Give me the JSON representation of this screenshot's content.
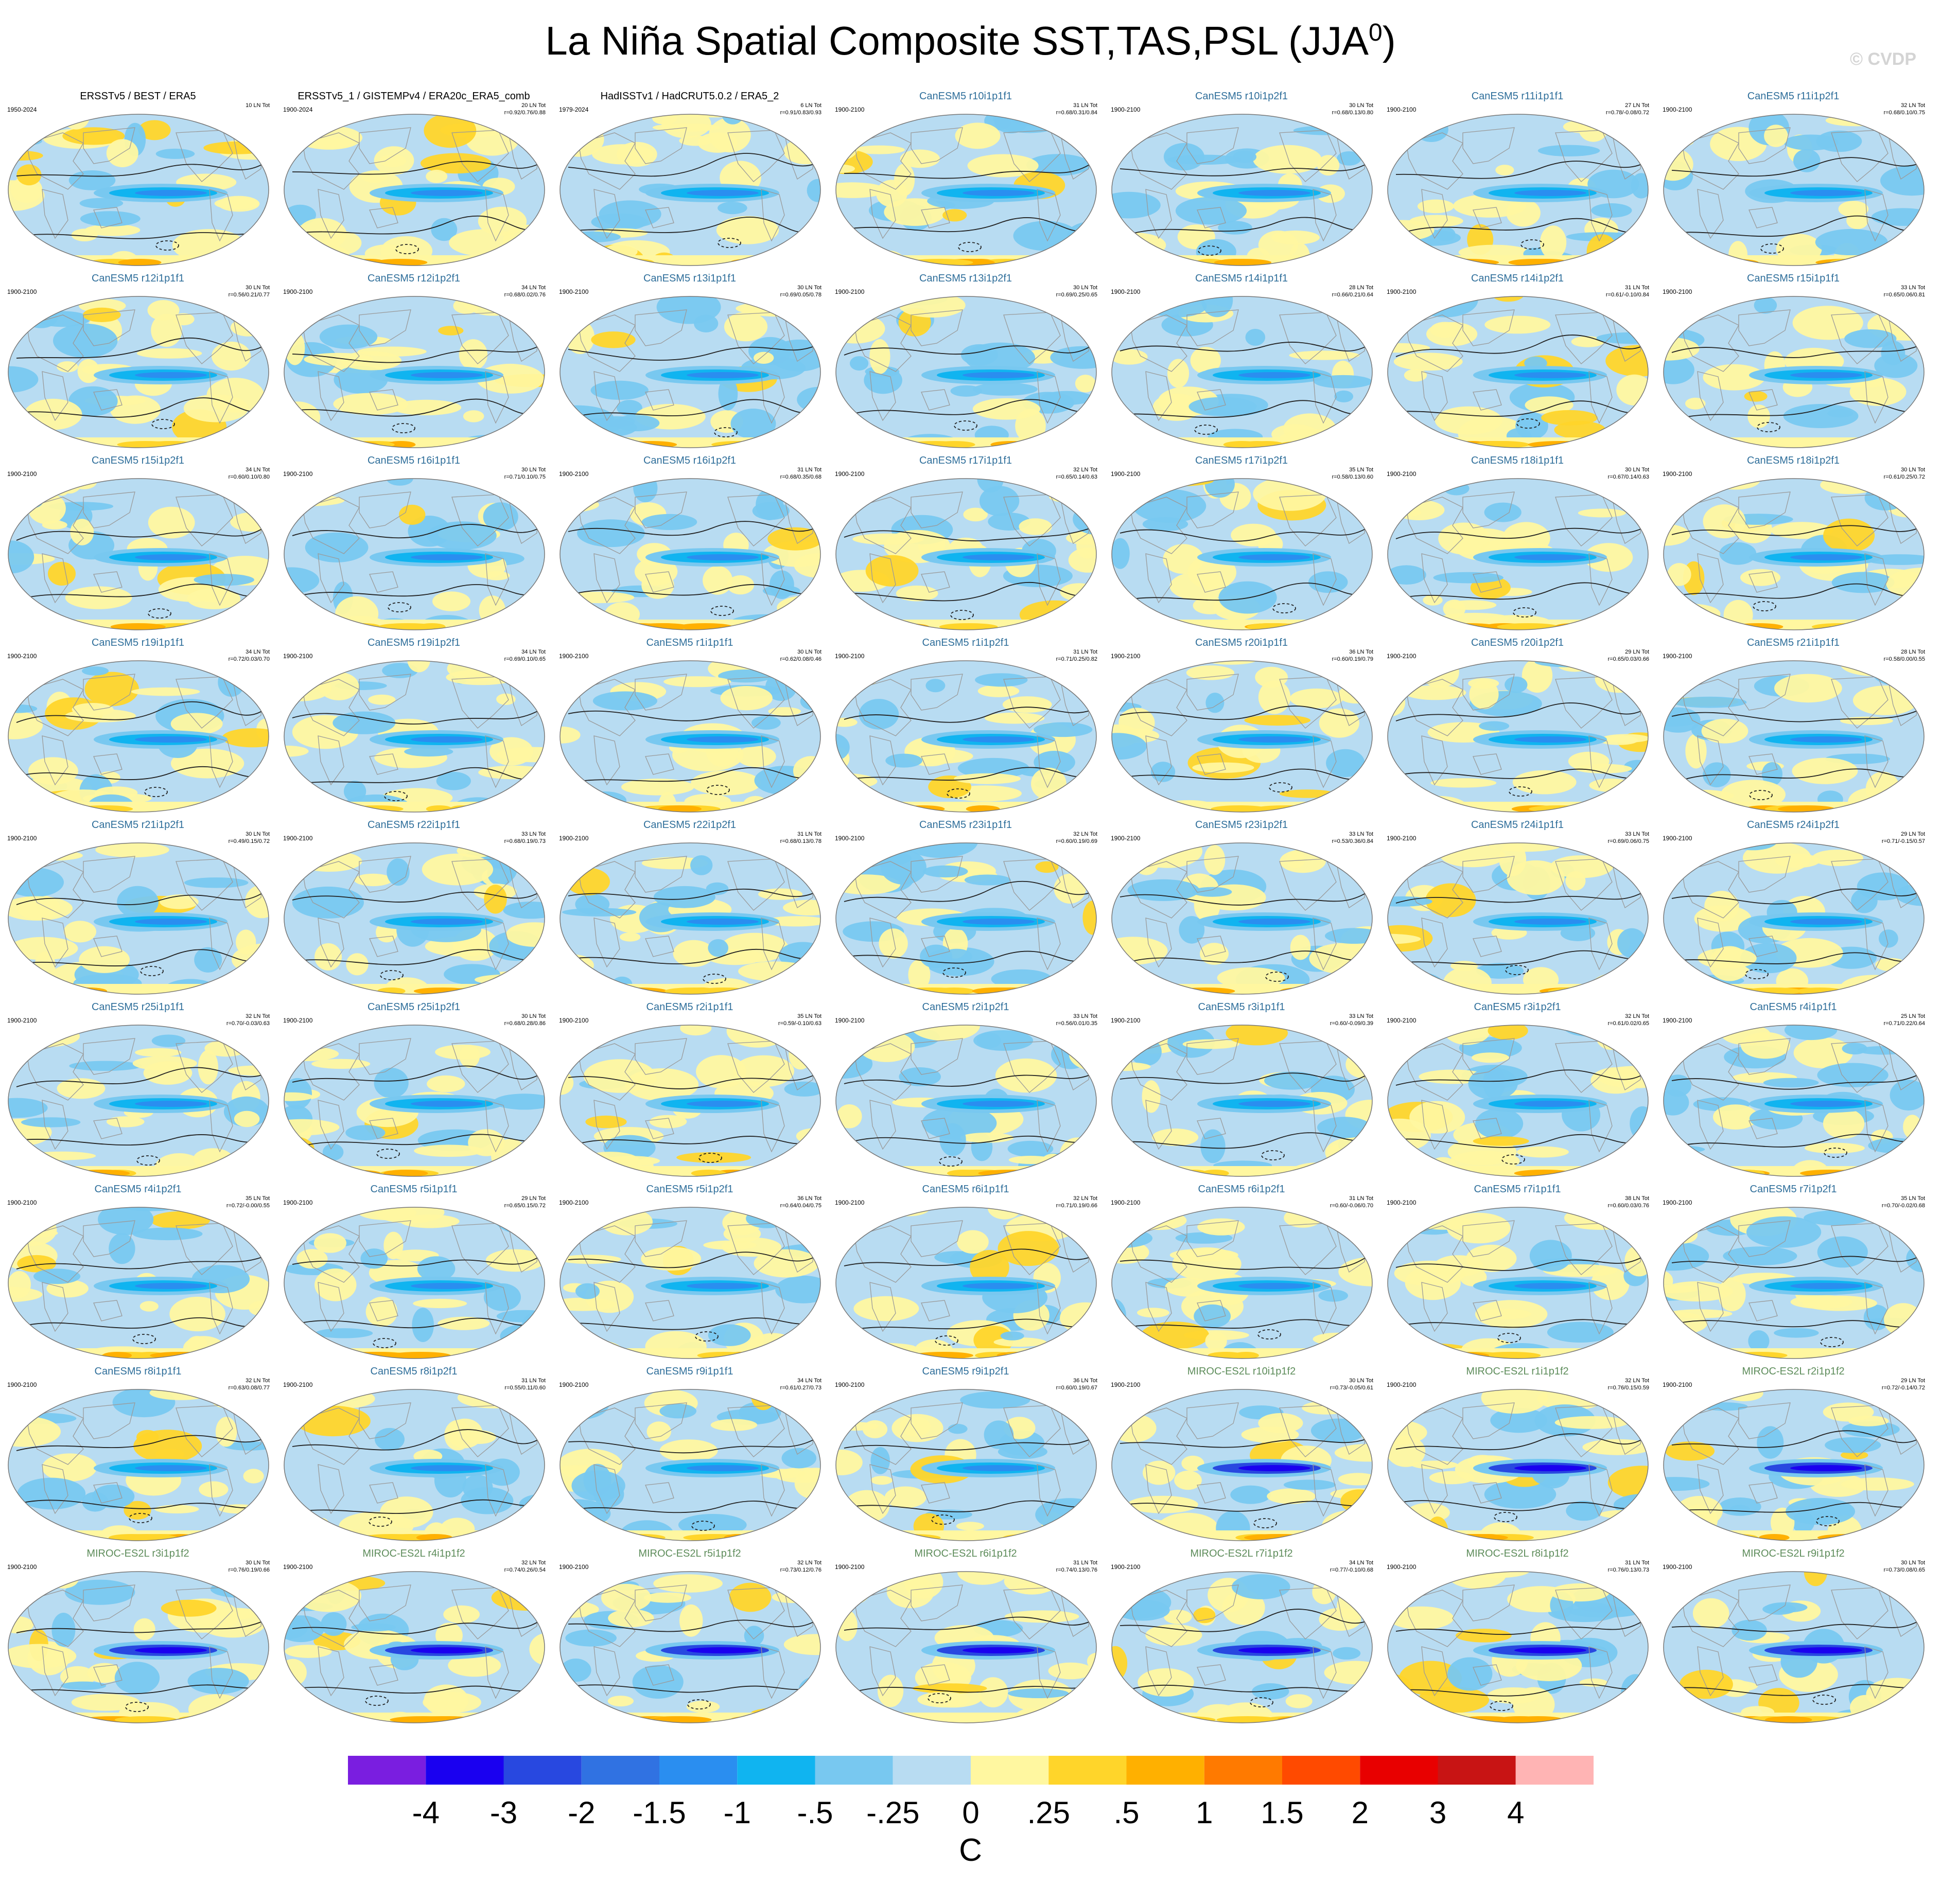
{
  "title": {
    "main": "La Niña Spatial Composite SST,TAS,PSL (JJA",
    "superscript": "0",
    "close": ")"
  },
  "watermark": "© CVDP",
  "colors": {
    "title_obs": "#000000",
    "title_canesm": "#2e6e9a",
    "title_miroc": "#5d8c5a",
    "ocean": "#b8dcf2",
    "land_outline": "#9a9a9a"
  },
  "panels": [
    {
      "title": "ERSSTv5 / BEST / ERA5",
      "years": "1950-2024",
      "count": "10 LN Tot",
      "stats": "",
      "model": "obs"
    },
    {
      "title": "ERSSTv5_1 / GISTEMPv4 / ERA20c_ERA5_comb",
      "years": "1900-2024",
      "count": "20 LN Tot",
      "stats": "r=0.92/0.76/0.88",
      "model": "obs"
    },
    {
      "title": "HadISSTv1 / HadCRUT5.0.2 / ERA5_2",
      "years": "1979-2024",
      "count": "6 LN Tot",
      "stats": "r=0.91/0.83/0.93",
      "model": "obs"
    },
    {
      "title": "CanESM5 r10i1p1f1",
      "years": "1900-2100",
      "count": "31 LN Tot",
      "stats": "r=0.68/0.31/0.84",
      "model": "canesm"
    },
    {
      "title": "CanESM5 r10i1p2f1",
      "years": "1900-2100",
      "count": "30 LN Tot",
      "stats": "r=0.68/0.13/0.80",
      "model": "canesm"
    },
    {
      "title": "CanESM5 r11i1p1f1",
      "years": "1900-2100",
      "count": "27 LN Tot",
      "stats": "r=0.78/-0.08/0.72",
      "model": "canesm"
    },
    {
      "title": "CanESM5 r11i1p2f1",
      "years": "1900-2100",
      "count": "32 LN Tot",
      "stats": "r=0.68/0.10/0.75",
      "model": "canesm"
    },
    {
      "title": "CanESM5 r12i1p1f1",
      "years": "1900-2100",
      "count": "30 LN Tot",
      "stats": "r=0.56/0.21/0.77",
      "model": "canesm"
    },
    {
      "title": "CanESM5 r12i1p2f1",
      "years": "1900-2100",
      "count": "34 LN Tot",
      "stats": "r=0.68/0.02/0.76",
      "model": "canesm"
    },
    {
      "title": "CanESM5 r13i1p1f1",
      "years": "1900-2100",
      "count": "30 LN Tot",
      "stats": "r=0.69/0.05/0.78",
      "model": "canesm"
    },
    {
      "title": "CanESM5 r13i1p2f1",
      "years": "1900-2100",
      "count": "30 LN Tot",
      "stats": "r=0.69/0.25/0.65",
      "model": "canesm"
    },
    {
      "title": "CanESM5 r14i1p1f1",
      "years": "1900-2100",
      "count": "28 LN Tot",
      "stats": "r=0.66/0.21/0.64",
      "model": "canesm"
    },
    {
      "title": "CanESM5 r14i1p2f1",
      "years": "1900-2100",
      "count": "31 LN Tot",
      "stats": "r=0.61/-0.10/0.84",
      "model": "canesm"
    },
    {
      "title": "CanESM5 r15i1p1f1",
      "years": "1900-2100",
      "count": "33 LN Tot",
      "stats": "r=0.65/0.06/0.81",
      "model": "canesm"
    },
    {
      "title": "CanESM5 r15i1p2f1",
      "years": "1900-2100",
      "count": "34 LN Tot",
      "stats": "r=0.60/0.10/0.80",
      "model": "canesm"
    },
    {
      "title": "CanESM5 r16i1p1f1",
      "years": "1900-2100",
      "count": "30 LN Tot",
      "stats": "r=0.71/0.10/0.75",
      "model": "canesm"
    },
    {
      "title": "CanESM5 r16i1p2f1",
      "years": "1900-2100",
      "count": "31 LN Tot",
      "stats": "r=0.68/0.35/0.68",
      "model": "canesm"
    },
    {
      "title": "CanESM5 r17i1p1f1",
      "years": "1900-2100",
      "count": "32 LN Tot",
      "stats": "r=0.65/0.14/0.63",
      "model": "canesm"
    },
    {
      "title": "CanESM5 r17i1p2f1",
      "years": "1900-2100",
      "count": "35 LN Tot",
      "stats": "r=0.58/0.13/0.60",
      "model": "canesm"
    },
    {
      "title": "CanESM5 r18i1p1f1",
      "years": "1900-2100",
      "count": "30 LN Tot",
      "stats": "r=0.67/0.14/0.63",
      "model": "canesm"
    },
    {
      "title": "CanESM5 r18i1p2f1",
      "years": "1900-2100",
      "count": "30 LN Tot",
      "stats": "r=0.61/0.25/0.72",
      "model": "canesm"
    },
    {
      "title": "CanESM5 r19i1p1f1",
      "years": "1900-2100",
      "count": "34 LN Tot",
      "stats": "r=0.72/0.03/0.70",
      "model": "canesm"
    },
    {
      "title": "CanESM5 r19i1p2f1",
      "years": "1900-2100",
      "count": "34 LN Tot",
      "stats": "r=0.69/0.10/0.65",
      "model": "canesm"
    },
    {
      "title": "CanESM5 r1i1p1f1",
      "years": "1900-2100",
      "count": "30 LN Tot",
      "stats": "r=0.62/0.08/0.46",
      "model": "canesm"
    },
    {
      "title": "CanESM5 r1i1p2f1",
      "years": "1900-2100",
      "count": "31 LN Tot",
      "stats": "r=0.71/0.25/0.82",
      "model": "canesm"
    },
    {
      "title": "CanESM5 r20i1p1f1",
      "years": "1900-2100",
      "count": "36 LN Tot",
      "stats": "r=0.60/0.19/0.79",
      "model": "canesm"
    },
    {
      "title": "CanESM5 r20i1p2f1",
      "years": "1900-2100",
      "count": "29 LN Tot",
      "stats": "r=0.65/0.03/0.66",
      "model": "canesm"
    },
    {
      "title": "CanESM5 r21i1p1f1",
      "years": "1900-2100",
      "count": "28 LN Tot",
      "stats": "r=0.58/0.00/0.55",
      "model": "canesm"
    },
    {
      "title": "CanESM5 r21i1p2f1",
      "years": "1900-2100",
      "count": "30 LN Tot",
      "stats": "r=0.49/0.15/0.72",
      "model": "canesm"
    },
    {
      "title": "CanESM5 r22i1p1f1",
      "years": "1900-2100",
      "count": "33 LN Tot",
      "stats": "r=0.68/0.19/0.73",
      "model": "canesm"
    },
    {
      "title": "CanESM5 r22i1p2f1",
      "years": "1900-2100",
      "count": "31 LN Tot",
      "stats": "r=0.68/0.13/0.78",
      "model": "canesm"
    },
    {
      "title": "CanESM5 r23i1p1f1",
      "years": "1900-2100",
      "count": "32 LN Tot",
      "stats": "r=0.60/0.19/0.69",
      "model": "canesm"
    },
    {
      "title": "CanESM5 r23i1p2f1",
      "years": "1900-2100",
      "count": "33 LN Tot",
      "stats": "r=0.53/0.36/0.84",
      "model": "canesm"
    },
    {
      "title": "CanESM5 r24i1p1f1",
      "years": "1900-2100",
      "count": "33 LN Tot",
      "stats": "r=0.69/0.06/0.75",
      "model": "canesm"
    },
    {
      "title": "CanESM5 r24i1p2f1",
      "years": "1900-2100",
      "count": "29 LN Tot",
      "stats": "r=0.71/-0.15/0.57",
      "model": "canesm"
    },
    {
      "title": "CanESM5 r25i1p1f1",
      "years": "1900-2100",
      "count": "32 LN Tot",
      "stats": "r=0.70/-0.03/0.63",
      "model": "canesm"
    },
    {
      "title": "CanESM5 r25i1p2f1",
      "years": "1900-2100",
      "count": "30 LN Tot",
      "stats": "r=0.68/0.28/0.86",
      "model": "canesm"
    },
    {
      "title": "CanESM5 r2i1p1f1",
      "years": "1900-2100",
      "count": "35 LN Tot",
      "stats": "r=0.59/-0.10/0.63",
      "model": "canesm"
    },
    {
      "title": "CanESM5 r2i1p2f1",
      "years": "1900-2100",
      "count": "33 LN Tot",
      "stats": "r=0.56/0.01/0.35",
      "model": "canesm"
    },
    {
      "title": "CanESM5 r3i1p1f1",
      "years": "1900-2100",
      "count": "33 LN Tot",
      "stats": "r=0.60/-0.09/0.39",
      "model": "canesm"
    },
    {
      "title": "CanESM5 r3i1p2f1",
      "years": "1900-2100",
      "count": "32 LN Tot",
      "stats": "r=0.61/0.02/0.65",
      "model": "canesm"
    },
    {
      "title": "CanESM5 r4i1p1f1",
      "years": "1900-2100",
      "count": "25 LN Tot",
      "stats": "r=0.71/0.22/0.64",
      "model": "canesm"
    },
    {
      "title": "CanESM5 r4i1p2f1",
      "years": "1900-2100",
      "count": "35 LN Tot",
      "stats": "r=0.72/-0.00/0.55",
      "model": "canesm"
    },
    {
      "title": "CanESM5 r5i1p1f1",
      "years": "1900-2100",
      "count": "29 LN Tot",
      "stats": "r=0.65/0.15/0.72",
      "model": "canesm"
    },
    {
      "title": "CanESM5 r5i1p2f1",
      "years": "1900-2100",
      "count": "36 LN Tot",
      "stats": "r=0.64/0.04/0.75",
      "model": "canesm"
    },
    {
      "title": "CanESM5 r6i1p1f1",
      "years": "1900-2100",
      "count": "32 LN Tot",
      "stats": "r=0.71/0.19/0.66",
      "model": "canesm"
    },
    {
      "title": "CanESM5 r6i1p2f1",
      "years": "1900-2100",
      "count": "31 LN Tot",
      "stats": "r=0.60/-0.06/0.70",
      "model": "canesm"
    },
    {
      "title": "CanESM5 r7i1p1f1",
      "years": "1900-2100",
      "count": "38 LN Tot",
      "stats": "r=0.60/0.03/0.76",
      "model": "canesm"
    },
    {
      "title": "CanESM5 r7i1p2f1",
      "years": "1900-2100",
      "count": "35 LN Tot",
      "stats": "r=0.70/-0.02/0.68",
      "model": "canesm"
    },
    {
      "title": "CanESM5 r8i1p1f1",
      "years": "1900-2100",
      "count": "32 LN Tot",
      "stats": "r=0.63/0.08/0.77",
      "model": "canesm"
    },
    {
      "title": "CanESM5 r8i1p2f1",
      "years": "1900-2100",
      "count": "31 LN Tot",
      "stats": "r=0.55/0.11/0.60",
      "model": "canesm"
    },
    {
      "title": "CanESM5 r9i1p1f1",
      "years": "1900-2100",
      "count": "34 LN Tot",
      "stats": "r=0.61/0.27/0.73",
      "model": "canesm"
    },
    {
      "title": "CanESM5 r9i1p2f1",
      "years": "1900-2100",
      "count": "36 LN Tot",
      "stats": "r=0.60/0.19/0.67",
      "model": "canesm"
    },
    {
      "title": "MIROC-ES2L r10i1p1f2",
      "years": "1900-2100",
      "count": "30 LN Tot",
      "stats": "r=0.73/-0.05/0.61",
      "model": "miroc"
    },
    {
      "title": "MIROC-ES2L r1i1p1f2",
      "years": "1900-2100",
      "count": "32 LN Tot",
      "stats": "r=0.76/0.15/0.59",
      "model": "miroc"
    },
    {
      "title": "MIROC-ES2L r2i1p1f2",
      "years": "1900-2100",
      "count": "29 LN Tot",
      "stats": "r=0.72/-0.14/0.72",
      "model": "miroc"
    },
    {
      "title": "MIROC-ES2L r3i1p1f2",
      "years": "1900-2100",
      "count": "30 LN Tot",
      "stats": "r=0.76/0.19/0.66",
      "model": "miroc"
    },
    {
      "title": "MIROC-ES2L r4i1p1f2",
      "years": "1900-2100",
      "count": "32 LN Tot",
      "stats": "r=0.74/0.26/0.54",
      "model": "miroc"
    },
    {
      "title": "MIROC-ES2L r5i1p1f2",
      "years": "1900-2100",
      "count": "32 LN Tot",
      "stats": "r=0.73/0.12/0.76",
      "model": "miroc"
    },
    {
      "title": "MIROC-ES2L r6i1p1f2",
      "years": "1900-2100",
      "count": "31 LN Tot",
      "stats": "r=0.74/0.13/0.76",
      "model": "miroc"
    },
    {
      "title": "MIROC-ES2L r7i1p1f2",
      "years": "1900-2100",
      "count": "34 LN Tot",
      "stats": "r=0.77/-0.10/0.68",
      "model": "miroc"
    },
    {
      "title": "MIROC-ES2L r8i1p1f2",
      "years": "1900-2100",
      "count": "31 LN Tot",
      "stats": "r=0.76/0.13/0.73",
      "model": "miroc"
    },
    {
      "title": "MIROC-ES2L r9i1p1f2",
      "years": "1900-2100",
      "count": "30 LN Tot",
      "stats": "r=0.73/0.08/0.65",
      "model": "miroc"
    }
  ],
  "chart_data": {
    "type": "heatmap",
    "title": "La Niña Spatial Composite SST,TAS,PSL (JJA0)",
    "projection": "Robinson global map, Pacific-centered",
    "layout": {
      "rows": 9,
      "columns": 7
    },
    "colorbar": {
      "units": "C",
      "labels": [
        "-4",
        "-3",
        "-2",
        "-1.5",
        "-1",
        "-.5",
        "-.25",
        "0",
        ".25",
        ".5",
        "1",
        "1.5",
        "2",
        "3",
        "4"
      ],
      "colors": [
        "#7a1ee0",
        "#1a00f0",
        "#2848e0",
        "#3072e2",
        "#2a8ef0",
        "#10b4f0",
        "#78c8f0",
        "#b8dcf2",
        "#fff7a0",
        "#ffd52a",
        "#ffb000",
        "#ff7a00",
        "#ff4a00",
        "#e80000",
        "#c81414",
        "#ffb4b4"
      ]
    }
  }
}
